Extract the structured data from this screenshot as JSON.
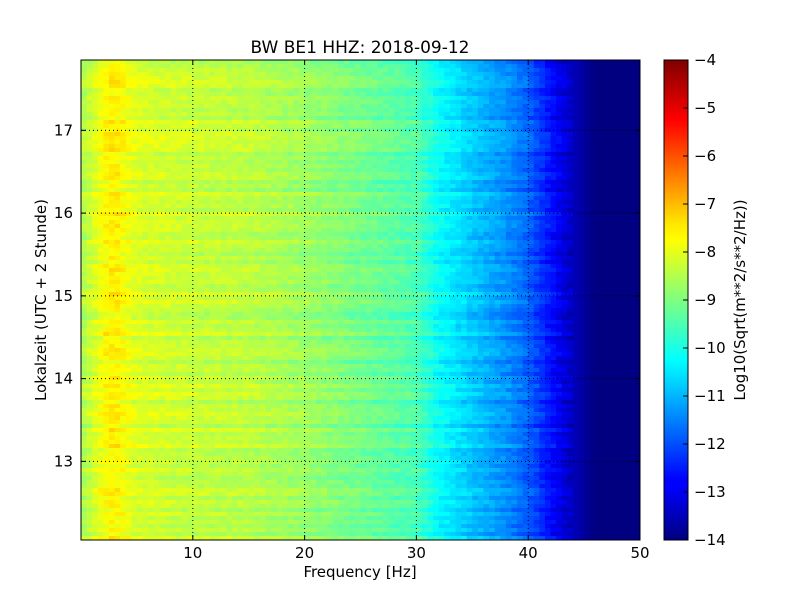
{
  "chart_data": {
    "type": "heatmap",
    "title": "BW BE1 HHZ: 2018-09-12",
    "xlabel": "Frequency [Hz]",
    "ylabel": "Lokalzeit (UTC + 2 Stunde)",
    "xlim": [
      0,
      50
    ],
    "ylim": [
      17.85,
      12.05
    ],
    "x_ticks": [
      10,
      20,
      30,
      40,
      50
    ],
    "y_ticks": [
      13,
      14,
      15,
      16,
      17
    ],
    "grid": true,
    "colormap": "jet",
    "colorbar": {
      "label": "Log10(Sqrt(m**2/s**2/Hz))",
      "range": [
        -14,
        -4
      ],
      "ticks": [
        -4,
        -5,
        -6,
        -7,
        -8,
        -9,
        -10,
        -11,
        -12,
        -13,
        -14
      ]
    },
    "spectral_profile": {
      "description_values_freq_hz": [
        0,
        1,
        2,
        3,
        5,
        10,
        15,
        20,
        25,
        30,
        32,
        35,
        38,
        40,
        42,
        44,
        46,
        50
      ],
      "description_values_log10": [
        -8.6,
        -8.2,
        -7.8,
        -7.6,
        -8.1,
        -8.3,
        -8.4,
        -8.7,
        -9.1,
        -9.5,
        -10.2,
        -10.8,
        -11.3,
        -11.8,
        -12.6,
        -13.4,
        -14,
        -14
      ]
    },
    "high_energy_times": [
      12.15,
      12.45,
      13.1,
      13.35,
      14.6,
      14.75,
      15.15,
      15.3,
      15.55,
      16.15,
      16.45,
      17.05,
      17.5,
      17.7
    ],
    "low_energy_times": [
      12.9,
      14.05,
      14.4,
      15.85,
      16.3,
      16.8
    ]
  }
}
